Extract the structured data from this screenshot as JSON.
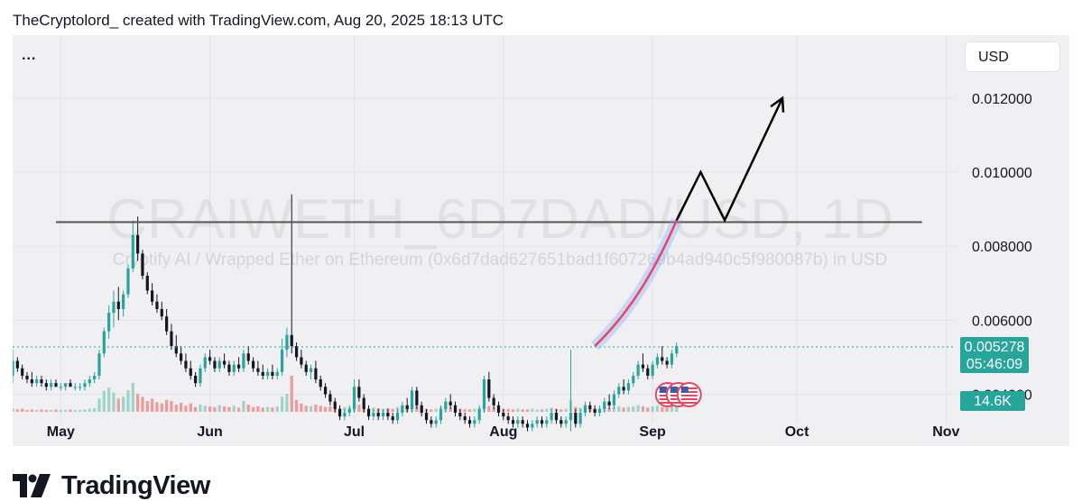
{
  "header": {
    "caption": "TheCryptolord_ created with TradingView.com, Aug 20, 2025 18:13 UTC"
  },
  "toolbar": {
    "menu_label": "...",
    "currency_label": "USD"
  },
  "watermark": {
    "symbol": "CRAIWETH_6D7DAD/USD, 1D",
    "description": "Cryptify AI / Wrapped Ether on Ethereum (0x6d7dad627651bad1f607269b4ad940c5f980087b) in USD"
  },
  "price_badge": {
    "price": "0.005278",
    "countdown": "05:46:09"
  },
  "volume_badge": {
    "label": "14.6K"
  },
  "brand": {
    "name": "TradingView"
  },
  "colors": {
    "background": "#f0f0f3",
    "up": "#26a69a",
    "down": "#131722",
    "volume_up": "#9fd3c7",
    "volume_down": "#ef9a9a",
    "projection_curve": "#e94560",
    "projection_arrow": "#000000",
    "resistance": "#555555",
    "price_line": "#26a69a"
  },
  "chart_data": {
    "type": "candlestick",
    "y_axis": {
      "ticks": [
        "0.012000",
        "0.010000",
        "0.008000",
        "0.006000",
        "0.004000"
      ],
      "tick_values": [
        0.012,
        0.01,
        0.008,
        0.006,
        0.004
      ],
      "range": [
        0.0026,
        0.0137
      ]
    },
    "x_axis": {
      "ticks": [
        {
          "label": "May",
          "date": "2025-05-01"
        },
        {
          "label": "Jun",
          "date": "2025-06-01"
        },
        {
          "label": "Jul",
          "date": "2025-07-01"
        },
        {
          "label": "Aug",
          "date": "2025-08-01"
        },
        {
          "label": "Sep",
          "date": "2025-09-01"
        },
        {
          "label": "Oct",
          "date": "2025-10-01"
        },
        {
          "label": "Nov",
          "date": "2025-11-01"
        }
      ],
      "range": [
        "2025-04-21",
        "2025-11-03"
      ]
    },
    "series_start_date": "2025-04-21",
    "candles": [
      [
        0.0045,
        0.0052,
        0.0043,
        0.0049
      ],
      [
        0.0049,
        0.005,
        0.0046,
        0.0047
      ],
      [
        0.0047,
        0.0048,
        0.0044,
        0.0045
      ],
      [
        0.0045,
        0.0046,
        0.0043,
        0.0044
      ],
      [
        0.0044,
        0.0046,
        0.0042,
        0.0043
      ],
      [
        0.0043,
        0.0045,
        0.0042,
        0.0044
      ],
      [
        0.0044,
        0.0045,
        0.0042,
        0.0043
      ],
      [
        0.0043,
        0.0044,
        0.0041,
        0.0042
      ],
      [
        0.0042,
        0.0044,
        0.0041,
        0.0043
      ],
      [
        0.0043,
        0.0044,
        0.0042,
        0.0042
      ],
      [
        0.0042,
        0.0043,
        0.0041,
        0.0042
      ],
      [
        0.0042,
        0.0043,
        0.0041,
        0.0043
      ],
      [
        0.0043,
        0.0044,
        0.0042,
        0.0042
      ],
      [
        0.0042,
        0.0043,
        0.0041,
        0.0042
      ],
      [
        0.0042,
        0.0043,
        0.0041,
        0.0042
      ],
      [
        0.0042,
        0.0044,
        0.0041,
        0.0043
      ],
      [
        0.0043,
        0.0045,
        0.0042,
        0.0044
      ],
      [
        0.0044,
        0.0046,
        0.0043,
        0.0045
      ],
      [
        0.0045,
        0.0052,
        0.0044,
        0.0051
      ],
      [
        0.0051,
        0.0058,
        0.005,
        0.0057
      ],
      [
        0.0057,
        0.0064,
        0.0055,
        0.0062
      ],
      [
        0.0062,
        0.0068,
        0.0058,
        0.0065
      ],
      [
        0.0065,
        0.0069,
        0.006,
        0.0063
      ],
      [
        0.0063,
        0.0068,
        0.0061,
        0.0067
      ],
      [
        0.0067,
        0.0075,
        0.0066,
        0.0074
      ],
      [
        0.0074,
        0.0087,
        0.0073,
        0.0083
      ],
      [
        0.0083,
        0.0088,
        0.0076,
        0.0078
      ],
      [
        0.0078,
        0.0079,
        0.0071,
        0.0072
      ],
      [
        0.0072,
        0.0073,
        0.0067,
        0.0068
      ],
      [
        0.0068,
        0.007,
        0.0064,
        0.0065
      ],
      [
        0.0065,
        0.0067,
        0.0062,
        0.0063
      ],
      [
        0.0063,
        0.0065,
        0.006,
        0.0061
      ],
      [
        0.0061,
        0.0063,
        0.0056,
        0.0057
      ],
      [
        0.0057,
        0.0059,
        0.0052,
        0.0053
      ],
      [
        0.0053,
        0.0056,
        0.005,
        0.0051
      ],
      [
        0.0051,
        0.0053,
        0.0048,
        0.0049
      ],
      [
        0.0049,
        0.0051,
        0.0046,
        0.0047
      ],
      [
        0.0047,
        0.0049,
        0.0044,
        0.0045
      ],
      [
        0.0045,
        0.0046,
        0.0042,
        0.0043
      ],
      [
        0.0043,
        0.0048,
        0.0042,
        0.0047
      ],
      [
        0.0047,
        0.0051,
        0.0046,
        0.005
      ],
      [
        0.005,
        0.0052,
        0.0048,
        0.0049
      ],
      [
        0.0049,
        0.005,
        0.0046,
        0.0047
      ],
      [
        0.0047,
        0.005,
        0.0046,
        0.0049
      ],
      [
        0.0049,
        0.0051,
        0.0047,
        0.0048
      ],
      [
        0.0048,
        0.0049,
        0.0045,
        0.0046
      ],
      [
        0.0046,
        0.0049,
        0.0045,
        0.0048
      ],
      [
        0.0048,
        0.005,
        0.0046,
        0.0047
      ],
      [
        0.0047,
        0.0052,
        0.0046,
        0.0051
      ],
      [
        0.0051,
        0.0053,
        0.0048,
        0.0049
      ],
      [
        0.0049,
        0.005,
        0.0046,
        0.0047
      ],
      [
        0.0047,
        0.0049,
        0.0045,
        0.0046
      ],
      [
        0.0046,
        0.0048,
        0.0044,
        0.0045
      ],
      [
        0.0045,
        0.0047,
        0.0044,
        0.0046
      ],
      [
        0.0046,
        0.0048,
        0.0044,
        0.0045
      ],
      [
        0.0045,
        0.0047,
        0.0044,
        0.0046
      ],
      [
        0.0046,
        0.0055,
        0.0045,
        0.0052
      ],
      [
        0.0052,
        0.0058,
        0.005,
        0.0056
      ],
      [
        0.0056,
        0.0094,
        0.0051,
        0.0053
      ],
      [
        0.0053,
        0.0054,
        0.0049,
        0.005
      ],
      [
        0.005,
        0.0052,
        0.0047,
        0.0048
      ],
      [
        0.0048,
        0.0049,
        0.0045,
        0.0046
      ],
      [
        0.0046,
        0.0048,
        0.0044,
        0.0047
      ],
      [
        0.0047,
        0.0049,
        0.0043,
        0.0044
      ],
      [
        0.0044,
        0.0045,
        0.0041,
        0.0042
      ],
      [
        0.0042,
        0.0043,
        0.0039,
        0.004
      ],
      [
        0.004,
        0.0041,
        0.0037,
        0.0038
      ],
      [
        0.0038,
        0.0039,
        0.0035,
        0.0036
      ],
      [
        0.0036,
        0.0037,
        0.0033,
        0.0034
      ],
      [
        0.0034,
        0.0036,
        0.0033,
        0.0035
      ],
      [
        0.0035,
        0.0037,
        0.0034,
        0.0036
      ],
      [
        0.0036,
        0.0044,
        0.0035,
        0.0042
      ],
      [
        0.0042,
        0.0044,
        0.0038,
        0.0039
      ],
      [
        0.0039,
        0.004,
        0.0035,
        0.0036
      ],
      [
        0.0036,
        0.0037,
        0.0033,
        0.0034
      ],
      [
        0.0034,
        0.0036,
        0.0033,
        0.0035
      ],
      [
        0.0035,
        0.0036,
        0.0033,
        0.0034
      ],
      [
        0.0034,
        0.0036,
        0.0033,
        0.0035
      ],
      [
        0.0035,
        0.0036,
        0.0033,
        0.0034
      ],
      [
        0.0034,
        0.0035,
        0.0032,
        0.0033
      ],
      [
        0.0033,
        0.0036,
        0.0032,
        0.0035
      ],
      [
        0.0035,
        0.0038,
        0.0034,
        0.0037
      ],
      [
        0.0037,
        0.0039,
        0.0035,
        0.0036
      ],
      [
        0.0036,
        0.0042,
        0.0035,
        0.0041
      ],
      [
        0.0041,
        0.0042,
        0.0036,
        0.0037
      ],
      [
        0.0037,
        0.0038,
        0.0034,
        0.0035
      ],
      [
        0.0035,
        0.0036,
        0.0032,
        0.0033
      ],
      [
        0.0033,
        0.0034,
        0.0031,
        0.0032
      ],
      [
        0.0032,
        0.0034,
        0.0031,
        0.0033
      ],
      [
        0.0033,
        0.0037,
        0.0032,
        0.0036
      ],
      [
        0.0036,
        0.0039,
        0.0035,
        0.0038
      ],
      [
        0.0038,
        0.004,
        0.0036,
        0.0037
      ],
      [
        0.0037,
        0.0038,
        0.0034,
        0.0035
      ],
      [
        0.0035,
        0.0036,
        0.0033,
        0.0034
      ],
      [
        0.0034,
        0.0035,
        0.0032,
        0.0033
      ],
      [
        0.0033,
        0.0034,
        0.0031,
        0.0032
      ],
      [
        0.0032,
        0.0034,
        0.0031,
        0.0033
      ],
      [
        0.0033,
        0.0037,
        0.0032,
        0.0036
      ],
      [
        0.0036,
        0.0045,
        0.0035,
        0.0044
      ],
      [
        0.0044,
        0.0046,
        0.0038,
        0.0039
      ],
      [
        0.0039,
        0.004,
        0.0036,
        0.0037
      ],
      [
        0.0037,
        0.0038,
        0.0034,
        0.0035
      ],
      [
        0.0035,
        0.0036,
        0.0033,
        0.0034
      ],
      [
        0.0034,
        0.0035,
        0.0032,
        0.0033
      ],
      [
        0.0033,
        0.0034,
        0.0031,
        0.0032
      ],
      [
        0.0032,
        0.0034,
        0.0031,
        0.0033
      ],
      [
        0.0033,
        0.0034,
        0.0031,
        0.0032
      ],
      [
        0.0032,
        0.0033,
        0.003,
        0.0031
      ],
      [
        0.0031,
        0.0033,
        0.003,
        0.0032
      ],
      [
        0.0032,
        0.0034,
        0.0031,
        0.0033
      ],
      [
        0.0033,
        0.0034,
        0.0031,
        0.0032
      ],
      [
        0.0032,
        0.0034,
        0.0031,
        0.0033
      ],
      [
        0.0033,
        0.0036,
        0.0032,
        0.0035
      ],
      [
        0.0035,
        0.0036,
        0.0032,
        0.0033
      ],
      [
        0.0033,
        0.0034,
        0.0031,
        0.0032
      ],
      [
        0.0032,
        0.0034,
        0.0031,
        0.0033
      ],
      [
        0.0033,
        0.0052,
        0.003,
        0.0035
      ],
      [
        0.0035,
        0.0036,
        0.0031,
        0.0032
      ],
      [
        0.0032,
        0.0036,
        0.0031,
        0.0035
      ],
      [
        0.0035,
        0.0038,
        0.0034,
        0.0037
      ],
      [
        0.0037,
        0.0038,
        0.0035,
        0.0036
      ],
      [
        0.0036,
        0.0037,
        0.0034,
        0.0035
      ],
      [
        0.0035,
        0.0037,
        0.0034,
        0.0036
      ],
      [
        0.0036,
        0.0039,
        0.0035,
        0.0038
      ],
      [
        0.0038,
        0.004,
        0.0036,
        0.0037
      ],
      [
        0.0037,
        0.0041,
        0.0036,
        0.004
      ],
      [
        0.004,
        0.0043,
        0.0039,
        0.0042
      ],
      [
        0.0042,
        0.0044,
        0.004,
        0.0041
      ],
      [
        0.0041,
        0.0044,
        0.004,
        0.0043
      ],
      [
        0.0043,
        0.0046,
        0.0042,
        0.0045
      ],
      [
        0.0045,
        0.0049,
        0.0044,
        0.0048
      ],
      [
        0.0048,
        0.0051,
        0.0046,
        0.0047
      ],
      [
        0.0047,
        0.0048,
        0.0044,
        0.0045
      ],
      [
        0.0045,
        0.0049,
        0.0044,
        0.0048
      ],
      [
        0.0048,
        0.0051,
        0.0047,
        0.005
      ],
      [
        0.005,
        0.0053,
        0.0048,
        0.0049
      ],
      [
        0.0049,
        0.005,
        0.0047,
        0.0048
      ],
      [
        0.0048,
        0.0052,
        0.0047,
        0.0051
      ],
      [
        0.0051,
        0.0054,
        0.005,
        0.0053
      ]
    ],
    "volume": [
      6,
      4,
      5,
      3,
      4,
      3,
      4,
      3,
      3,
      4,
      3,
      3,
      4,
      3,
      3,
      4,
      5,
      6,
      22,
      35,
      40,
      32,
      22,
      25,
      36,
      48,
      30,
      25,
      18,
      22,
      16,
      14,
      20,
      18,
      12,
      15,
      10,
      14,
      8,
      12,
      10,
      9,
      8,
      11,
      9,
      8,
      10,
      7,
      18,
      12,
      8,
      9,
      7,
      8,
      7,
      9,
      25,
      30,
      60,
      20,
      14,
      10,
      9,
      12,
      10,
      8,
      9,
      7,
      6,
      8,
      7,
      14,
      12,
      8,
      6,
      7,
      6,
      5,
      6,
      5,
      8,
      9,
      7,
      12,
      9,
      6,
      5,
      4,
      5,
      8,
      10,
      7,
      6,
      5,
      4,
      4,
      5,
      7,
      14,
      10,
      7,
      6,
      5,
      5,
      4,
      5,
      4,
      4,
      5,
      4,
      4,
      5,
      7,
      5,
      4,
      5,
      20,
      8,
      7,
      8,
      6,
      5,
      6,
      7,
      6,
      8,
      9,
      7,
      8,
      9,
      11,
      9,
      7,
      9,
      10,
      8,
      7,
      9,
      14
    ],
    "volume_max": 60,
    "current_price": 0.005278,
    "resistance_level": 0.00865,
    "resistance_range": [
      "2025-04-30",
      "2025-10-27"
    ],
    "projection_curve": [
      [
        "2025-08-20",
        0.0053
      ],
      [
        "2025-08-28",
        0.0063
      ],
      [
        "2025-09-02",
        0.0075
      ],
      [
        "2025-09-06",
        0.0087
      ]
    ],
    "projection_arrow": [
      [
        "2025-09-06",
        0.0087
      ],
      [
        "2025-09-11",
        0.01
      ],
      [
        "2025-09-16",
        0.0087
      ],
      [
        "2025-09-28",
        0.012
      ]
    ]
  }
}
